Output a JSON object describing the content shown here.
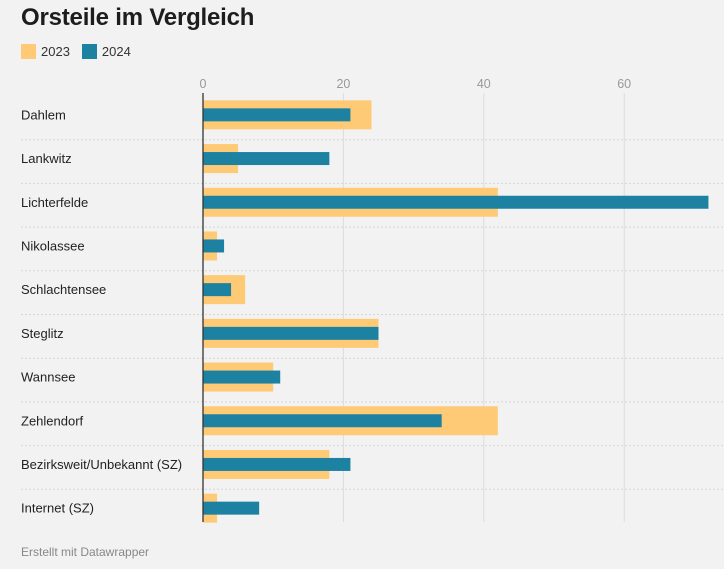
{
  "header": {
    "title": "Orsteile im Vergleich"
  },
  "footer": {
    "credit": "Erstellt mit Datawrapper"
  },
  "chart_data": {
    "type": "bar",
    "orientation": "horizontal",
    "title": "Orsteile im Vergleich",
    "categories": [
      "Dahlem",
      "Lankwitz",
      "Lichterfelde",
      "Nikolassee",
      "Schlachtensee",
      "Steglitz",
      "Wannsee",
      "Zehlendorf",
      "Bezirksweit/Unbekannt (SZ)",
      "Internet (SZ)"
    ],
    "series": [
      {
        "name": "2023",
        "color": "#ffca76",
        "values": [
          24,
          5,
          42,
          2,
          6,
          25,
          10,
          42,
          18,
          2
        ]
      },
      {
        "name": "2024",
        "color": "#1d81a2",
        "values": [
          21,
          18,
          72,
          3,
          4,
          25,
          11,
          34,
          21,
          8
        ]
      }
    ],
    "xlim": [
      0,
      72
    ],
    "xticks": [
      0,
      20,
      40,
      60
    ],
    "xtick_labels": [
      "0",
      "20",
      "40",
      "60"
    ],
    "legend_position": "top-left",
    "grid": true
  }
}
